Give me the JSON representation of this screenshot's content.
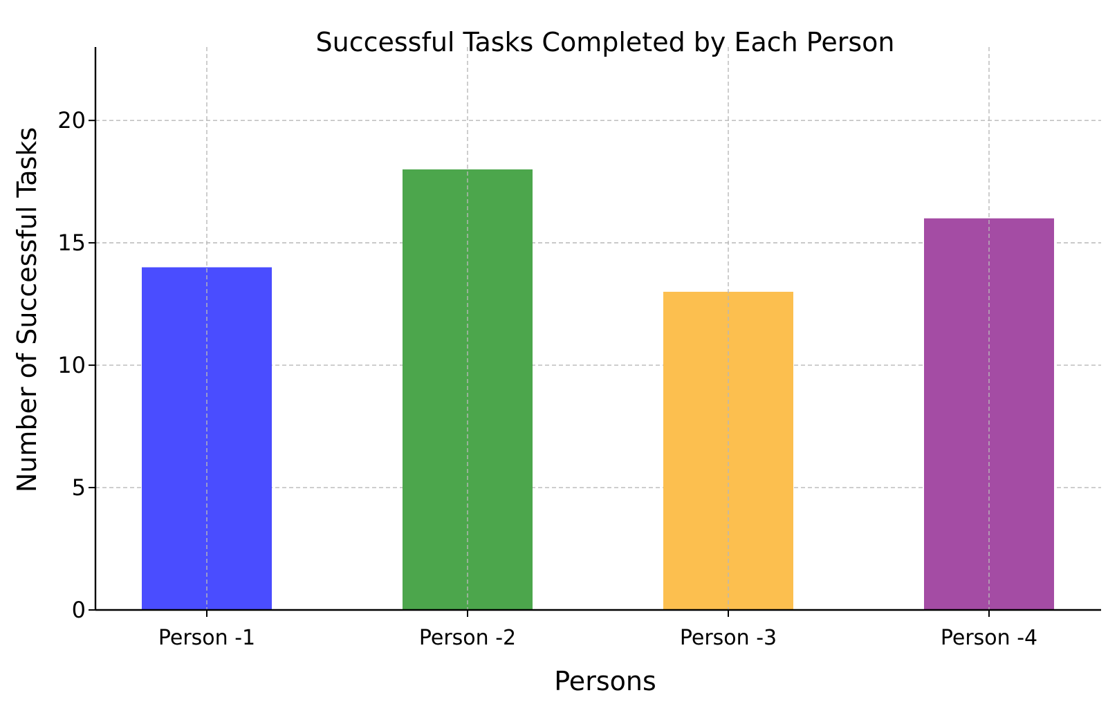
{
  "chart_data": {
    "type": "bar",
    "title": "Successful Tasks Completed by Each Person",
    "xlabel": "Persons",
    "ylabel": "Number of Successful Tasks",
    "categories": [
      "Person -1",
      "Person -2",
      "Person -3",
      "Person -4"
    ],
    "values": [
      14,
      18,
      13,
      16
    ],
    "colors": [
      "#4a4dff",
      "#4ca64c",
      "#fcbf4f",
      "#a44ca4"
    ],
    "ylim": [
      0,
      23
    ],
    "yticks": [
      0,
      5,
      10,
      15,
      20
    ],
    "grid": true,
    "legend": "none"
  }
}
